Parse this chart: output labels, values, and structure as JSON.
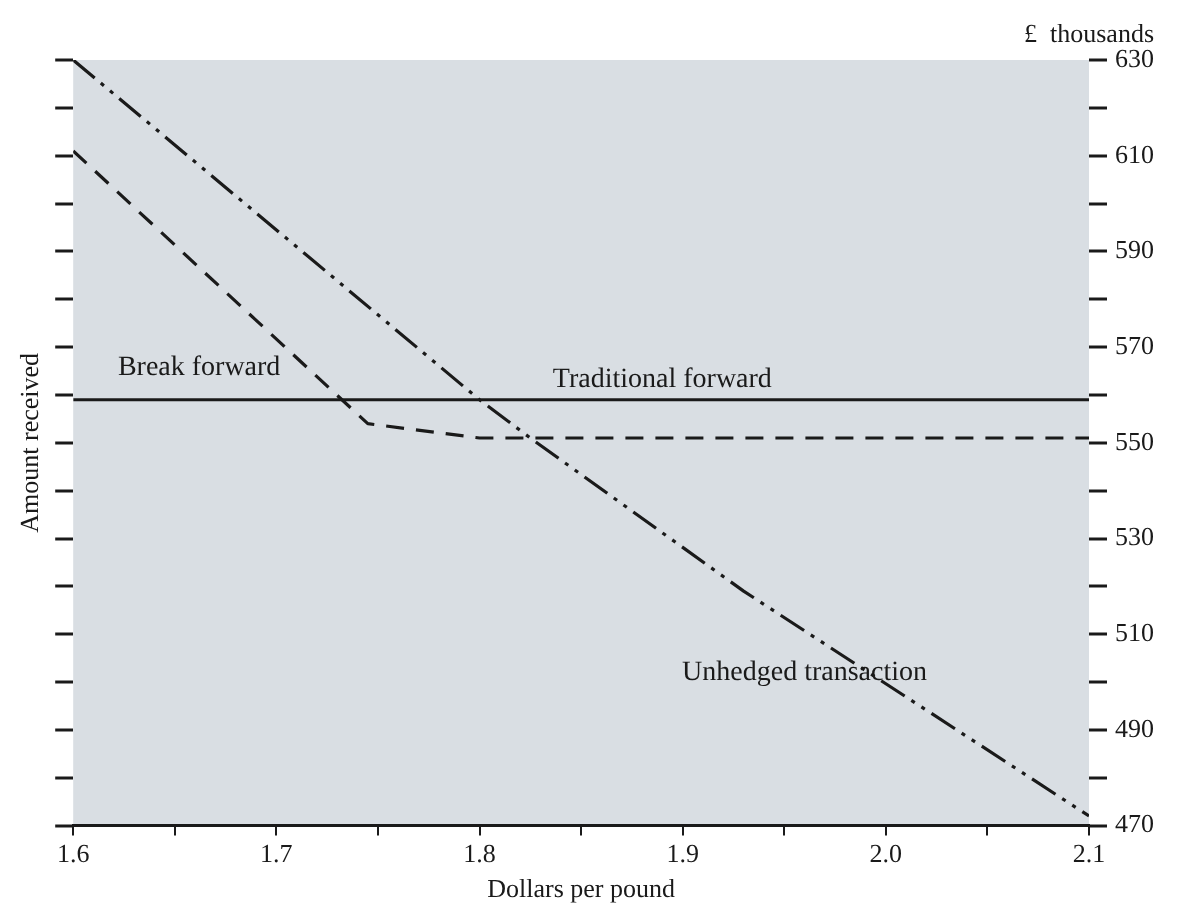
{
  "chart_data": {
    "type": "line",
    "xlabel": "Dollars per pound",
    "ylabel": "Amount received",
    "annotations": [
      "£  thousands"
    ],
    "xlim": [
      1.6,
      2.1
    ],
    "xticks": [
      1.6,
      {
        "value": 1.65,
        "label": null
      },
      1.7,
      {
        "value": 1.75,
        "label": null
      },
      1.8,
      {
        "value": 1.85,
        "label": null
      },
      1.9,
      {
        "value": 1.95,
        "label": null
      },
      {
        "value": 2.0,
        "label": "2.0"
      },
      {
        "value": 2.05,
        "label": null
      },
      2.1
    ],
    "ylim": [
      470,
      630
    ],
    "yticks": [
      470,
      {
        "value": 480,
        "label": null
      },
      490,
      {
        "value": 500,
        "label": null
      },
      510,
      {
        "value": 520,
        "label": null
      },
      530,
      {
        "value": 540,
        "label": null
      },
      550,
      {
        "value": 560,
        "label": null
      },
      570,
      {
        "value": 580,
        "label": null
      },
      590,
      {
        "value": 600,
        "label": null
      },
      610,
      {
        "value": 620,
        "label": null
      },
      630
    ],
    "grid": false,
    "legend": false,
    "marker": "none",
    "series": [
      {
        "name": "Traditional forward",
        "color": "#1a1a1a",
        "line_style": "solid",
        "x": [
          1.6,
          2.1
        ],
        "values": [
          559,
          559
        ]
      },
      {
        "name": "Break forward",
        "color": "#1a1a1a",
        "line_style": "dashed",
        "x": [
          1.6,
          1.745,
          1.8,
          2.1
        ],
        "values": [
          611,
          554,
          551,
          551
        ]
      },
      {
        "name": "Unhedged transaction",
        "color": "#1a1a1a",
        "line_style": "dashdot",
        "x": [
          1.6,
          1.8,
          1.825,
          1.93,
          2.1
        ],
        "values": [
          630,
          559,
          551,
          519,
          472
        ]
      }
    ]
  }
}
